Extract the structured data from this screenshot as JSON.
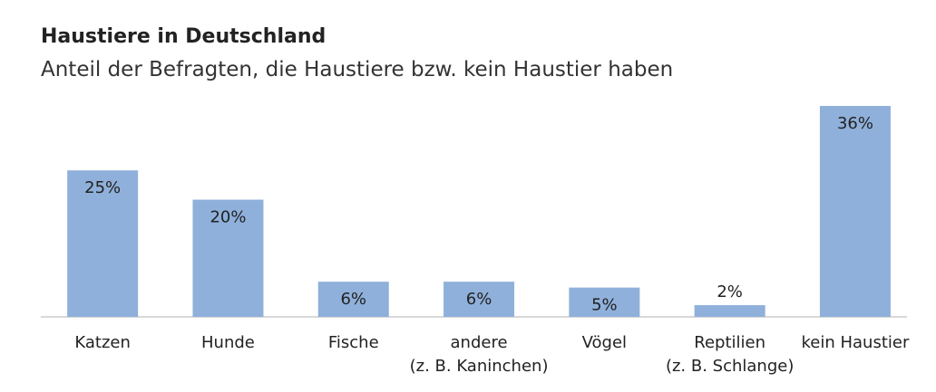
{
  "chart_data": {
    "type": "bar",
    "title": "Haustiere in Deutschland",
    "subtitle": "Anteil der Befragten, die Haustiere bzw. kein Haustier haben",
    "categories": [
      "Katzen",
      "Hunde",
      "Fische",
      "andere\n(z. B. Kaninchen)",
      "Vögel",
      "Reptilien\n(z. B. Schlange)",
      "kein Haustier"
    ],
    "values": [
      25,
      20,
      6,
      6,
      5,
      2,
      36
    ],
    "value_labels": [
      "25%",
      "20%",
      "6%",
      "6%",
      "5%",
      "2%",
      "36%"
    ],
    "color": "#8fb0da"
  }
}
